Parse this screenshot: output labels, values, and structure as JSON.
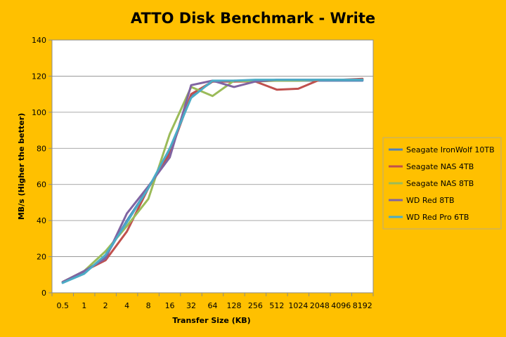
{
  "chart_data": {
    "type": "line",
    "title": "ATTO Disk Benchmark - Write",
    "xlabel": "Transfer Size (KB)",
    "ylabel": "MB/s (Higher the better)",
    "ylim": [
      0,
      140
    ],
    "yticks": [
      0,
      20,
      40,
      60,
      80,
      100,
      120,
      140
    ],
    "grid": "horizontal",
    "legend_position": "right",
    "categories": [
      "0.5",
      "1",
      "2",
      "4",
      "8",
      "16",
      "32",
      "64",
      "128",
      "256",
      "512",
      "1024",
      "2048",
      "4096",
      "8192"
    ],
    "series": [
      {
        "name": "Seagate IronWolf 10TB",
        "color": "#4F81BD",
        "values": [
          5.5,
          11,
          20,
          40,
          58,
          78,
          109,
          117,
          117,
          117.5,
          117.5,
          117.5,
          117.5,
          117.5,
          117.5
        ]
      },
      {
        "name": "Seagate NAS 4TB",
        "color": "#C0504D",
        "values": [
          6,
          12,
          18,
          34,
          58,
          77,
          110,
          117,
          117,
          117,
          112.5,
          113,
          118,
          118,
          118.5
        ]
      },
      {
        "name": "Seagate NAS 8TB",
        "color": "#9BBB59",
        "values": [
          6,
          12,
          23,
          37,
          52,
          88,
          114,
          109,
          117.5,
          117,
          117.5,
          117.5,
          118,
          118,
          118
        ]
      },
      {
        "name": "WD Red 8TB",
        "color": "#8064A2",
        "values": [
          6,
          12,
          19,
          44,
          59,
          75,
          115,
          117.5,
          114,
          117,
          118,
          118,
          118,
          118,
          118
        ]
      },
      {
        "name": "WD Red Pro 6TB",
        "color": "#4BACC6",
        "values": [
          5.5,
          10.5,
          21,
          39,
          58,
          80,
          108,
          117.5,
          117.5,
          118,
          118,
          118,
          118,
          118,
          118
        ]
      }
    ]
  }
}
